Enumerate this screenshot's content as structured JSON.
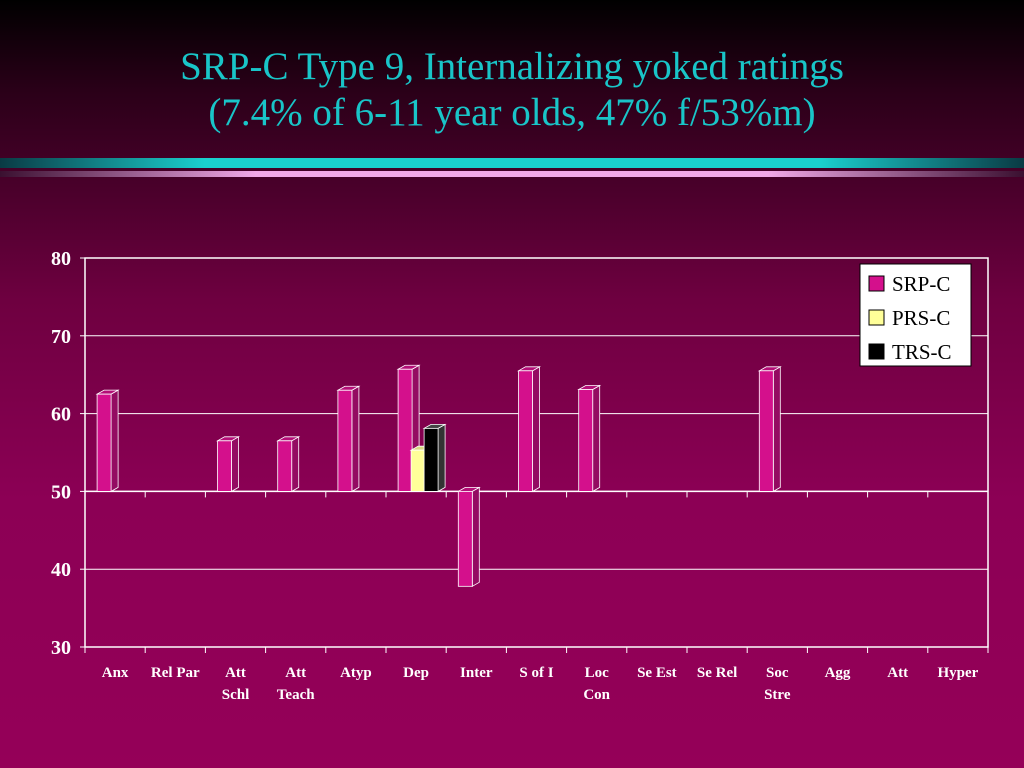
{
  "slide": {
    "title_line1": "SRP-C Type 9, Internalizing yoked ratings",
    "title_line2": "(7.4% of 6-11 year olds, 47% f/53%m)"
  },
  "chart_data": {
    "type": "bar",
    "baseline": 50,
    "ylim": [
      30,
      80
    ],
    "yticks": [
      30,
      40,
      50,
      60,
      70,
      80
    ],
    "grid": true,
    "legend_position": "top-right",
    "categories": [
      [
        "Anx"
      ],
      [
        "Rel Par"
      ],
      [
        "Att",
        "Schl"
      ],
      [
        "Att",
        "Teach"
      ],
      [
        "Atyp"
      ],
      [
        "Dep"
      ],
      [
        "Inter"
      ],
      [
        "S of I"
      ],
      [
        "Loc",
        "Con"
      ],
      [
        "Se Est"
      ],
      [
        "Se Rel"
      ],
      [
        "Soc",
        "Stre"
      ],
      [
        "Agg"
      ],
      [
        "Att"
      ],
      [
        "Hyper"
      ]
    ],
    "series": [
      {
        "name": "SRP-C",
        "color": "#d4108c",
        "values": [
          62.5,
          null,
          56.5,
          56.5,
          63,
          65.7,
          37.8,
          65.5,
          63.1,
          null,
          null,
          65.5,
          null,
          null,
          null
        ]
      },
      {
        "name": "PRS-C",
        "color": "#ffff99",
        "values": [
          null,
          null,
          null,
          null,
          null,
          55.3,
          null,
          null,
          null,
          null,
          null,
          null,
          null,
          null,
          null
        ]
      },
      {
        "name": "TRS-C",
        "color": "#000000",
        "values": [
          null,
          null,
          null,
          null,
          null,
          58.1,
          null,
          null,
          null,
          null,
          null,
          null,
          null,
          null,
          null
        ]
      }
    ]
  }
}
